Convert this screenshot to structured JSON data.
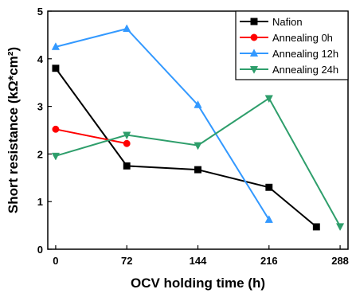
{
  "chart_data": {
    "type": "line",
    "xlabel": "OCV holding time (h)",
    "ylabel": "Short resistance (kΩ*cm²)",
    "xlim": [
      -8,
      296
    ],
    "ylim": [
      0,
      5
    ],
    "xticks": [
      0,
      72,
      144,
      216,
      288
    ],
    "yticks": [
      0,
      1,
      2,
      3,
      4,
      5
    ],
    "legend_position": "top-right",
    "series": [
      {
        "name": "Nafion",
        "color": "#000000",
        "marker": "square",
        "x": [
          0,
          72,
          144,
          216,
          264
        ],
        "y": [
          3.8,
          1.75,
          1.67,
          1.3,
          0.47
        ]
      },
      {
        "name": "Annealing  0h",
        "color": "#ff0000",
        "marker": "circle",
        "x": [
          0,
          72
        ],
        "y": [
          2.52,
          2.22
        ]
      },
      {
        "name": "Annealing 12h",
        "color": "#3399ff",
        "marker": "triangle-up",
        "x": [
          0,
          72,
          144,
          216
        ],
        "y": [
          4.25,
          4.63,
          3.03,
          0.62
        ]
      },
      {
        "name": "Annealing 24h",
        "color": "#2e9e6b",
        "marker": "triangle-down",
        "x": [
          0,
          72,
          144,
          216,
          288
        ],
        "y": [
          1.96,
          2.4,
          2.18,
          3.17,
          0.48
        ]
      }
    ]
  }
}
